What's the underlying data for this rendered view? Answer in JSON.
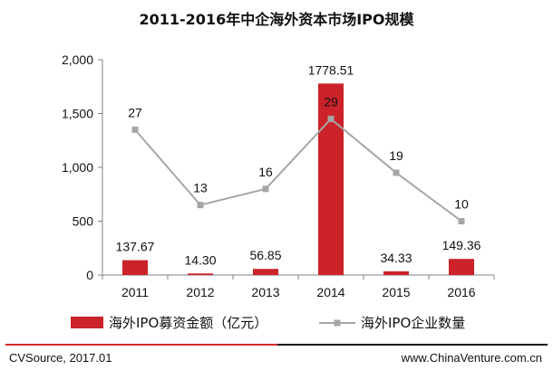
{
  "chart_data": {
    "type": "bar",
    "title": "2011-2016年中企海外资本市场IPO规模",
    "categories": [
      "2011",
      "2012",
      "2013",
      "2014",
      "2015",
      "2016"
    ],
    "ylim": [
      0,
      2000
    ],
    "yticks": [
      "0",
      "500",
      "1,000",
      "1,500",
      "2,000"
    ],
    "ytick_values": [
      0,
      500,
      1000,
      1500,
      2000
    ],
    "grid": false,
    "legend_position": "bottom",
    "series": [
      {
        "name": "海外IPO募资金额（亿元）",
        "kind": "bar",
        "color": "#cc2229",
        "values": [
          137.67,
          14.3,
          56.85,
          1778.51,
          34.33,
          149.36
        ],
        "labels": [
          "137.67",
          "14.30",
          "56.85",
          "1778.51",
          "34.33",
          "149.36"
        ]
      },
      {
        "name": "海外IPO企业数量",
        "kind": "line",
        "color": "#a6a6a6",
        "values": [
          27,
          13,
          16,
          29,
          19,
          10
        ],
        "labels": [
          "27",
          "13",
          "16",
          "29",
          "19",
          "10"
        ]
      }
    ]
  },
  "footer": {
    "source": "CVSource, 2017.01",
    "website": "www.ChinaVenture.com.cn"
  }
}
